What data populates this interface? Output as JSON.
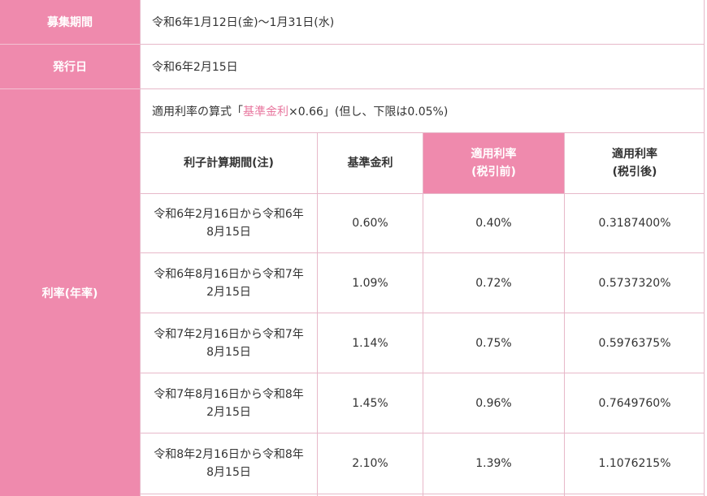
{
  "rows": {
    "recruitment": {
      "label": "募集期間",
      "value": "令和6年1月12日(金)〜1月31日(水)"
    },
    "issue_date": {
      "label": "発行日",
      "value": "令和6年2月15日"
    },
    "interest": {
      "label": "利率(年率)",
      "formula_prefix": "適用利率の算式「",
      "formula_highlight": "基準金利",
      "formula_suffix": "×0.66」(但し、下限は0.05%)"
    }
  },
  "table": {
    "headers": [
      {
        "line1": "利子計算期間(注)",
        "line2": ""
      },
      {
        "line1": "基準金利",
        "line2": ""
      },
      {
        "line1": "適用利率",
        "line2": "(税引前)"
      },
      {
        "line1": "適用利率",
        "line2": "(税引後)"
      }
    ],
    "rows": [
      {
        "period1": "令和6年2月16日から令和6年",
        "period2": "8月15日",
        "base": "0.60%",
        "pre": "0.40%",
        "post": "0.3187400%"
      },
      {
        "period1": "令和6年8月16日から令和7年",
        "period2": "2月15日",
        "base": "1.09%",
        "pre": "0.72%",
        "post": "0.5737320%"
      },
      {
        "period1": "令和7年2月16日から令和7年",
        "period2": "8月15日",
        "base": "1.14%",
        "pre": "0.75%",
        "post": "0.5976375%"
      },
      {
        "period1": "令和7年8月16日から令和8年",
        "period2": "2月15日",
        "base": "1.45%",
        "pre": "0.96%",
        "post": "0.7649760%"
      },
      {
        "period1": "令和8年2月16日から令和8年",
        "period2": "8月15日",
        "base": "2.10%",
        "pre": "1.39%",
        "post": "1.1076215%"
      }
    ]
  },
  "colors": {
    "accent": "#ef8aad",
    "highlight_text": "#e8769e",
    "border": "#e7b8c9"
  }
}
